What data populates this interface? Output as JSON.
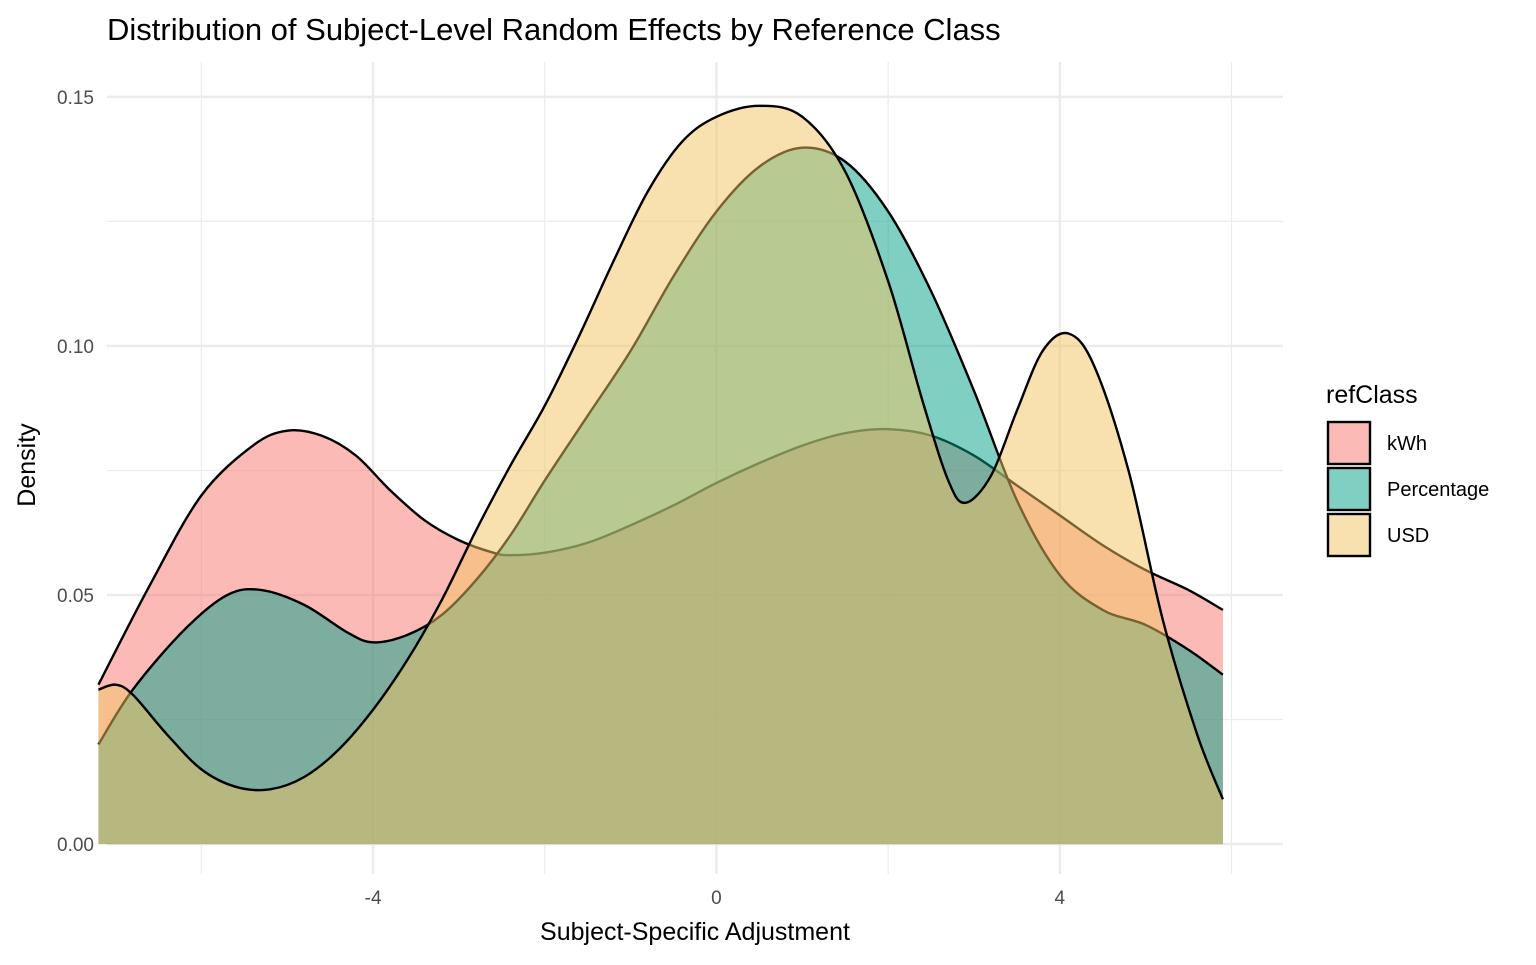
{
  "chart_data": {
    "type": "area",
    "subtype": "density",
    "title": "Distribution of Subject-Level Random Effects by Reference Class",
    "xlabel": "Subject-Specific Adjustment",
    "ylabel": "Density",
    "xlim": [
      -7.1,
      6.6
    ],
    "ylim": [
      -0.006,
      0.157
    ],
    "x_ticks": [
      -4,
      0,
      4
    ],
    "x_tick_labels": [
      "-4",
      "0",
      "4"
    ],
    "x_minor_ticks": [
      -6,
      -2,
      2,
      6
    ],
    "y_ticks": [
      0,
      0.05,
      0.1,
      0.15
    ],
    "y_tick_labels": [
      "0.00",
      "0.05",
      "0.10",
      "0.15"
    ],
    "y_minor_ticks": [
      0.025,
      0.075,
      0.125
    ],
    "grid": true,
    "legend": {
      "title": "refClass",
      "position": "right"
    },
    "fill_opacity": 0.5,
    "series": [
      {
        "name": "kWh",
        "color": "#F8766D",
        "points": [
          [
            -7.2,
            0.032
          ],
          [
            -6.6,
            0.052
          ],
          [
            -6.0,
            0.07
          ],
          [
            -5.4,
            0.08
          ],
          [
            -5.0,
            0.083
          ],
          [
            -4.6,
            0.082
          ],
          [
            -4.2,
            0.078
          ],
          [
            -3.8,
            0.071
          ],
          [
            -3.4,
            0.065
          ],
          [
            -3.0,
            0.061
          ],
          [
            -2.6,
            0.0585
          ],
          [
            -2.4,
            0.058
          ],
          [
            -2.0,
            0.0585
          ],
          [
            -1.5,
            0.0605
          ],
          [
            -1.0,
            0.064
          ],
          [
            -0.5,
            0.068
          ],
          [
            0.0,
            0.0725
          ],
          [
            0.5,
            0.0765
          ],
          [
            1.0,
            0.08
          ],
          [
            1.5,
            0.0825
          ],
          [
            2.0,
            0.0833
          ],
          [
            2.5,
            0.082
          ],
          [
            3.0,
            0.078
          ],
          [
            3.5,
            0.072
          ],
          [
            4.0,
            0.066
          ],
          [
            4.5,
            0.06
          ],
          [
            5.0,
            0.055
          ],
          [
            5.5,
            0.051
          ],
          [
            5.9,
            0.047
          ]
        ]
      },
      {
        "name": "Percentage",
        "color": "#00A087",
        "points": [
          [
            -7.2,
            0.02
          ],
          [
            -6.8,
            0.031
          ],
          [
            -6.2,
            0.043
          ],
          [
            -5.7,
            0.05
          ],
          [
            -5.3,
            0.051
          ],
          [
            -4.8,
            0.048
          ],
          [
            -4.3,
            0.0425
          ],
          [
            -4.0,
            0.0405
          ],
          [
            -3.6,
            0.042
          ],
          [
            -3.2,
            0.046
          ],
          [
            -2.8,
            0.053
          ],
          [
            -2.4,
            0.062
          ],
          [
            -2.0,
            0.073
          ],
          [
            -1.5,
            0.086
          ],
          [
            -1.0,
            0.099
          ],
          [
            -0.5,
            0.114
          ],
          [
            0.0,
            0.127
          ],
          [
            0.5,
            0.136
          ],
          [
            1.0,
            0.1398
          ],
          [
            1.5,
            0.137
          ],
          [
            2.0,
            0.127
          ],
          [
            2.5,
            0.111
          ],
          [
            3.0,
            0.091
          ],
          [
            3.5,
            0.069
          ],
          [
            4.0,
            0.054
          ],
          [
            4.5,
            0.047
          ],
          [
            5.0,
            0.044
          ],
          [
            5.5,
            0.039
          ],
          [
            5.9,
            0.034
          ]
        ]
      },
      {
        "name": "USD",
        "color": "#F2C45F",
        "points": [
          [
            -7.2,
            0.031
          ],
          [
            -7.0,
            0.032
          ],
          [
            -6.8,
            0.03
          ],
          [
            -6.4,
            0.022
          ],
          [
            -6.0,
            0.015
          ],
          [
            -5.6,
            0.0115
          ],
          [
            -5.2,
            0.011
          ],
          [
            -4.8,
            0.0135
          ],
          [
            -4.4,
            0.019
          ],
          [
            -4.0,
            0.027
          ],
          [
            -3.6,
            0.037
          ],
          [
            -3.2,
            0.049
          ],
          [
            -2.8,
            0.063
          ],
          [
            -2.4,
            0.076
          ],
          [
            -2.0,
            0.088
          ],
          [
            -1.6,
            0.102
          ],
          [
            -1.2,
            0.117
          ],
          [
            -0.8,
            0.131
          ],
          [
            -0.4,
            0.141
          ],
          [
            0.0,
            0.146
          ],
          [
            0.5,
            0.1482
          ],
          [
            1.0,
            0.146
          ],
          [
            1.5,
            0.135
          ],
          [
            2.0,
            0.113
          ],
          [
            2.4,
            0.089
          ],
          [
            2.7,
            0.073
          ],
          [
            2.9,
            0.0685
          ],
          [
            3.2,
            0.074
          ],
          [
            3.5,
            0.087
          ],
          [
            3.8,
            0.099
          ],
          [
            4.1,
            0.1025
          ],
          [
            4.4,
            0.096
          ],
          [
            4.8,
            0.075
          ],
          [
            5.2,
            0.045
          ],
          [
            5.6,
            0.022
          ],
          [
            5.9,
            0.009
          ]
        ]
      }
    ]
  }
}
